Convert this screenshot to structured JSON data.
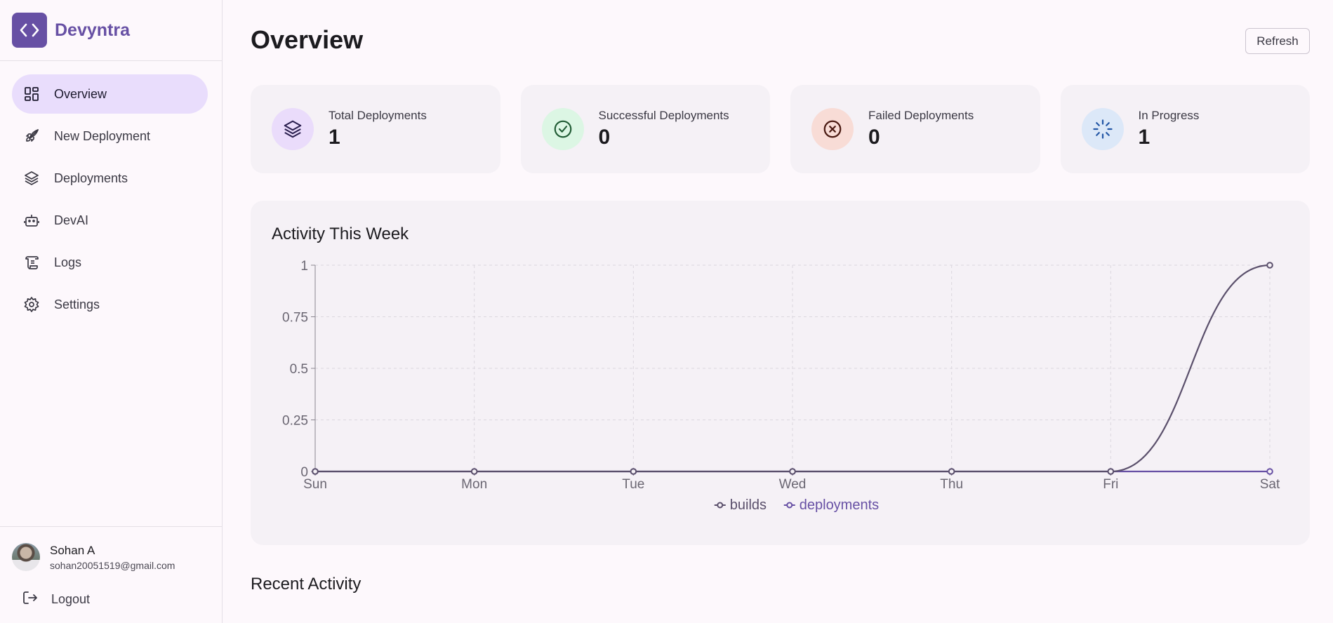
{
  "brand": {
    "name": "Devyntra",
    "logo_icon": "code-brackets-icon",
    "accent": "#6750a4"
  },
  "sidebar": {
    "items": [
      {
        "label": "Overview",
        "icon": "dashboard-icon",
        "active": true
      },
      {
        "label": "New Deployment",
        "icon": "rocket-icon",
        "active": false
      },
      {
        "label": "Deployments",
        "icon": "layers-icon",
        "active": false
      },
      {
        "label": "DevAI",
        "icon": "robot-icon",
        "active": false
      },
      {
        "label": "Logs",
        "icon": "scroll-icon",
        "active": false
      },
      {
        "label": "Settings",
        "icon": "gear-icon",
        "active": false
      }
    ],
    "user": {
      "name": "Sohan A",
      "email": "sohan20051519@gmail.com"
    },
    "logout_label": "Logout"
  },
  "header": {
    "title": "Overview",
    "refresh_label": "Refresh"
  },
  "stats": [
    {
      "label": "Total Deployments",
      "value": "1",
      "icon": "layers-icon",
      "icon_bg": "#eadcfb",
      "icon_color": "#2a1f4f"
    },
    {
      "label": "Successful Deployments",
      "value": "0",
      "icon": "check-circle-icon",
      "icon_bg": "#dcf6e4",
      "icon_color": "#1f5a33"
    },
    {
      "label": "Failed Deployments",
      "value": "0",
      "icon": "x-circle-icon",
      "icon_bg": "#f8dcd6",
      "icon_color": "#4a1a12"
    },
    {
      "label": "In Progress",
      "value": "1",
      "icon": "loader-icon",
      "icon_bg": "#dce8f8",
      "icon_color": "#2457a6"
    }
  ],
  "activity": {
    "title": "Activity This Week"
  },
  "chart_data": {
    "type": "line",
    "title": "Activity This Week",
    "x": [
      "Sun",
      "Mon",
      "Tue",
      "Wed",
      "Thu",
      "Fri",
      "Sat"
    ],
    "y_ticks": [
      "0",
      "0.25",
      "0.5",
      "0.75",
      "1"
    ],
    "ylim": [
      0,
      1
    ],
    "grid": true,
    "legend_position": "bottom",
    "series": [
      {
        "name": "builds",
        "values": [
          0,
          0,
          0,
          0,
          0,
          0,
          1
        ],
        "color": "#5a4f6b"
      },
      {
        "name": "deployments",
        "values": [
          0,
          0,
          0,
          0,
          0,
          0,
          0
        ],
        "color": "#6750a4"
      }
    ]
  },
  "recent": {
    "title": "Recent Activity"
  }
}
